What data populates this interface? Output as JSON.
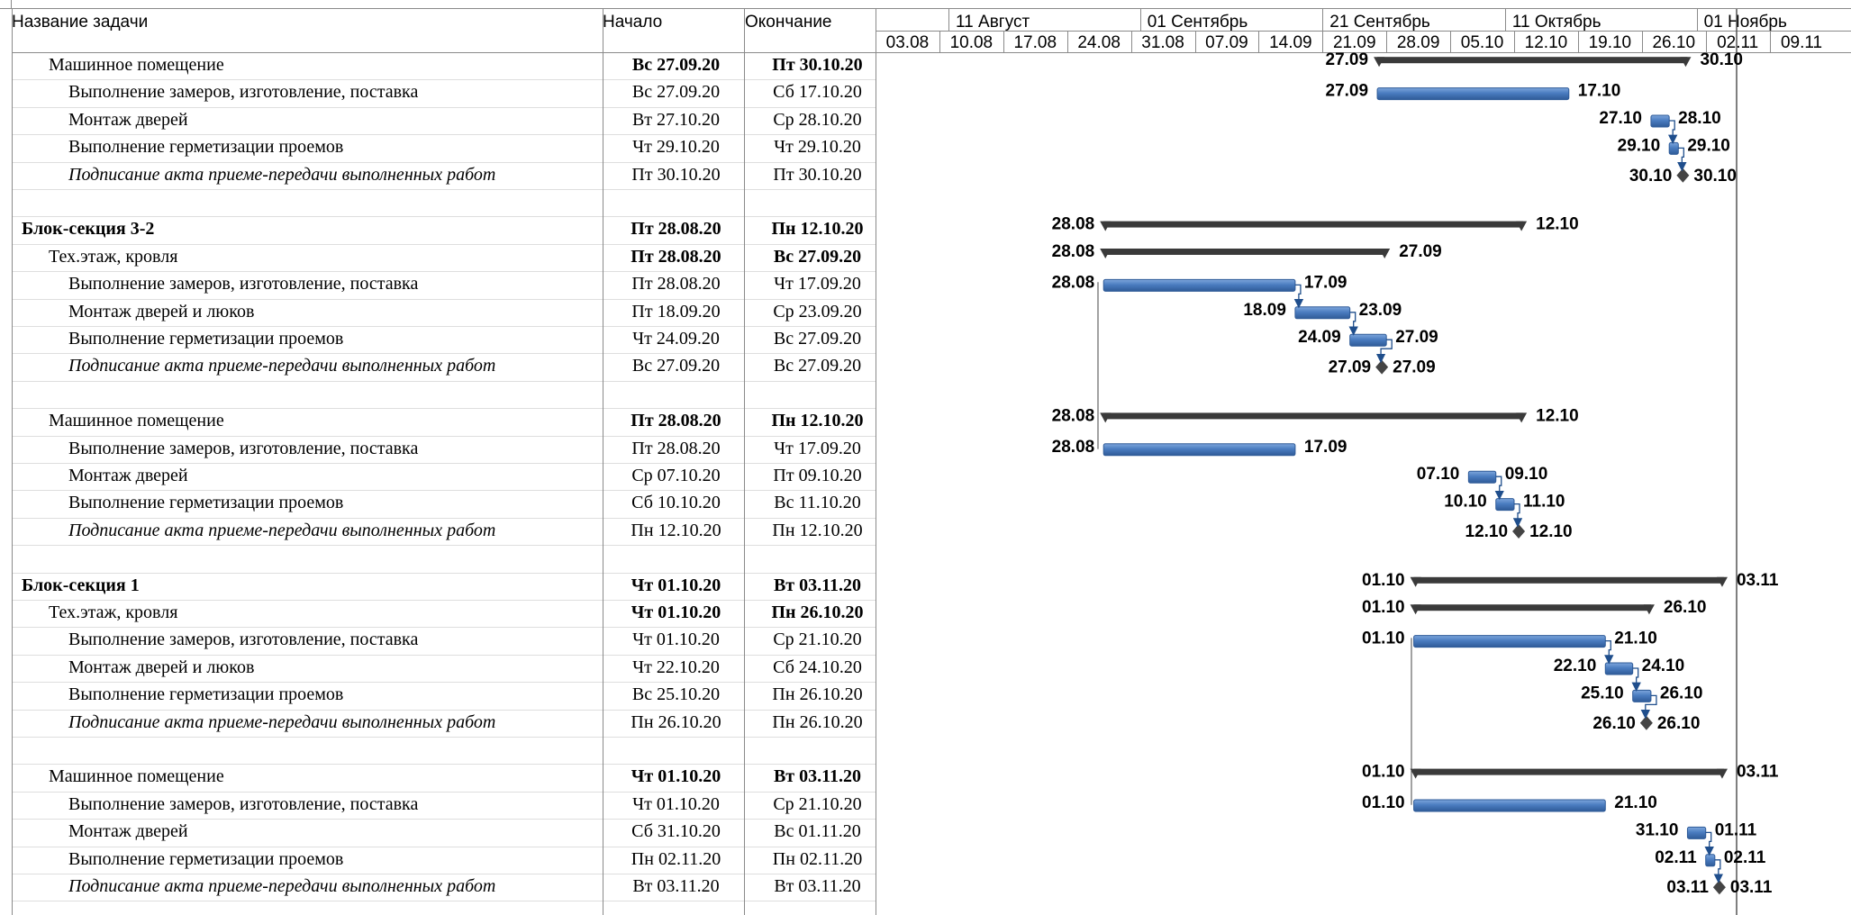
{
  "columns": {
    "name": "Название задачи",
    "start": "Начало",
    "end": "Окончание"
  },
  "timescale": {
    "months": [
      "11 Август",
      "01 Сентябрь",
      "21 Сентябрь",
      "11 Октябрь",
      "01 Ноябрь"
    ],
    "weeks": [
      "03.08",
      "10.08",
      "17.08",
      "24.08",
      "31.08",
      "07.09",
      "14.09",
      "21.09",
      "28.09",
      "05.10",
      "12.10",
      "19.10",
      "26.10",
      "02.11",
      "09.11"
    ]
  },
  "colors": {
    "task_bar": "#4a7cc0",
    "summary_bar": "#3a3a3a",
    "grid": "#8a8a8a"
  },
  "tasks": [
    {
      "name": "Машинное помещение",
      "start": "Вс 27.09.20",
      "end": "Пт 30.10.20",
      "type": "sub",
      "s": "27.09",
      "e": "30.10"
    },
    {
      "name": "Выполнение замеров, изготовление, поставка",
      "start": "Вс 27.09.20",
      "end": "Сб 17.10.20",
      "type": "task",
      "s": "27.09",
      "e": "17.10"
    },
    {
      "name": "Монтаж дверей",
      "start": "Вт 27.10.20",
      "end": "Ср 28.10.20",
      "type": "task",
      "s": "27.10",
      "e": "28.10"
    },
    {
      "name": "Выполнение герметизации проемов",
      "start": "Чт 29.10.20",
      "end": "Чт 29.10.20",
      "type": "task",
      "s": "29.10",
      "e": "29.10"
    },
    {
      "name": "Подписание акта приеме-передачи выполненных работ",
      "start": "Пт 30.10.20",
      "end": "Пт 30.10.20",
      "type": "milestone",
      "s": "30.10",
      "e": "30.10"
    },
    {
      "name": "",
      "start": "",
      "end": "",
      "type": "blank"
    },
    {
      "name": "Блок-секция 3-2",
      "start": "Пт 28.08.20",
      "end": "Пн 12.10.20",
      "type": "summary",
      "s": "28.08",
      "e": "12.10"
    },
    {
      "name": "Тех.этаж, кровля",
      "start": "Пт 28.08.20",
      "end": "Вс 27.09.20",
      "type": "sub",
      "s": "28.08",
      "e": "27.09"
    },
    {
      "name": "Выполнение замеров, изготовление, поставка",
      "start": "Пт 28.08.20",
      "end": "Чт 17.09.20",
      "type": "task",
      "s": "28.08",
      "e": "17.09"
    },
    {
      "name": "Монтаж дверей и люков",
      "start": "Пт 18.09.20",
      "end": "Ср 23.09.20",
      "type": "task",
      "s": "18.09",
      "e": "23.09"
    },
    {
      "name": "Выполнение герметизации проемов",
      "start": "Чт 24.09.20",
      "end": "Вс 27.09.20",
      "type": "task",
      "s": "24.09",
      "e": "27.09"
    },
    {
      "name": "Подписание акта приеме-передачи выполненных работ",
      "start": "Вс 27.09.20",
      "end": "Вс 27.09.20",
      "type": "milestone",
      "s": "27.09",
      "e": "27.09"
    },
    {
      "name": "",
      "start": "",
      "end": "",
      "type": "blank"
    },
    {
      "name": "Машинное помещение",
      "start": "Пт 28.08.20",
      "end": "Пн 12.10.20",
      "type": "sub",
      "s": "28.08",
      "e": "12.10"
    },
    {
      "name": "Выполнение замеров, изготовление, поставка",
      "start": "Пт 28.08.20",
      "end": "Чт 17.09.20",
      "type": "task",
      "s": "28.08",
      "e": "17.09"
    },
    {
      "name": "Монтаж дверей",
      "start": "Ср 07.10.20",
      "end": "Пт 09.10.20",
      "type": "task",
      "s": "07.10",
      "e": "09.10"
    },
    {
      "name": "Выполнение герметизации проемов",
      "start": "Сб 10.10.20",
      "end": "Вс 11.10.20",
      "type": "task",
      "s": "10.10",
      "e": "11.10"
    },
    {
      "name": "Подписание акта приеме-передачи выполненных работ",
      "start": "Пн 12.10.20",
      "end": "Пн 12.10.20",
      "type": "milestone",
      "s": "12.10",
      "e": "12.10"
    },
    {
      "name": "",
      "start": "",
      "end": "",
      "type": "blank"
    },
    {
      "name": "Блок-секция 1",
      "start": "Чт 01.10.20",
      "end": "Вт 03.11.20",
      "type": "summary",
      "s": "01.10",
      "e": "03.11"
    },
    {
      "name": "Тех.этаж, кровля",
      "start": "Чт 01.10.20",
      "end": "Пн 26.10.20",
      "type": "sub",
      "s": "01.10",
      "e": "26.10"
    },
    {
      "name": "Выполнение замеров, изготовление, поставка",
      "start": "Чт 01.10.20",
      "end": "Ср 21.10.20",
      "type": "task",
      "s": "01.10",
      "e": "21.10"
    },
    {
      "name": "Монтаж дверей и люков",
      "start": "Чт 22.10.20",
      "end": "Сб 24.10.20",
      "type": "task",
      "s": "22.10",
      "e": "24.10"
    },
    {
      "name": "Выполнение герметизации проемов",
      "start": "Вс 25.10.20",
      "end": "Пн 26.10.20",
      "type": "task",
      "s": "25.10",
      "e": "26.10"
    },
    {
      "name": "Подписание акта приеме-передачи выполненных работ",
      "start": "Пн 26.10.20",
      "end": "Пн 26.10.20",
      "type": "milestone",
      "s": "26.10",
      "e": "26.10"
    },
    {
      "name": "",
      "start": "",
      "end": "",
      "type": "blank"
    },
    {
      "name": "Машинное помещение",
      "start": "Чт 01.10.20",
      "end": "Вт 03.11.20",
      "type": "sub",
      "s": "01.10",
      "e": "03.11"
    },
    {
      "name": "Выполнение замеров, изготовление, поставка",
      "start": "Чт 01.10.20",
      "end": "Ср 21.10.20",
      "type": "task",
      "s": "01.10",
      "e": "21.10"
    },
    {
      "name": "Монтаж дверей",
      "start": "Сб 31.10.20",
      "end": "Вс 01.11.20",
      "type": "task",
      "s": "31.10",
      "e": "01.11"
    },
    {
      "name": "Выполнение герметизации проемов",
      "start": "Пн 02.11.20",
      "end": "Пн 02.11.20",
      "type": "task",
      "s": "02.11",
      "e": "02.11"
    },
    {
      "name": "Подписание акта приеме-передачи выполненных работ",
      "start": "Вт 03.11.20",
      "end": "Вт 03.11.20",
      "type": "milestone",
      "s": "03.11",
      "e": "03.11"
    }
  ]
}
